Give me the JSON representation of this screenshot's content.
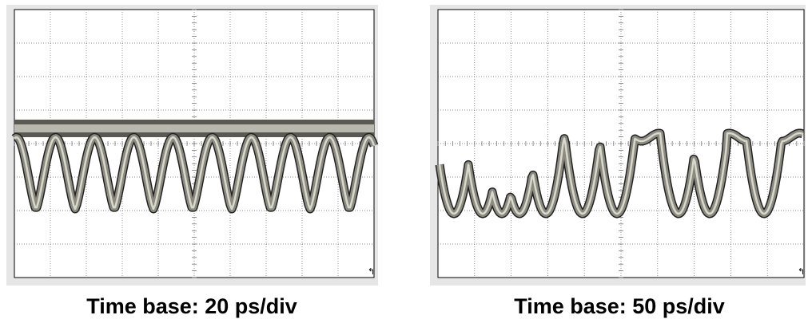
{
  "panels": [
    {
      "caption": "Time base: 20 ps/div"
    },
    {
      "caption": "Time base: 50 ps/div"
    }
  ]
}
